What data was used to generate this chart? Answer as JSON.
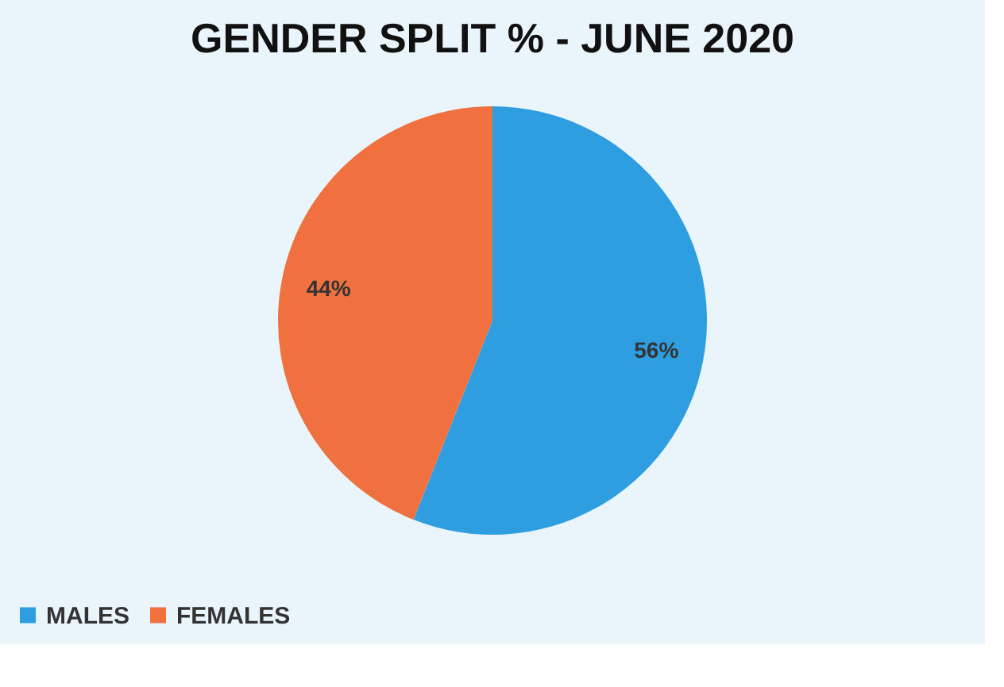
{
  "chart_data": {
    "type": "pie",
    "title": "GENDER SPLIT % - JUNE 2020",
    "categories": [
      "MALES",
      "FEMALES"
    ],
    "values": [
      56,
      44
    ],
    "colors": [
      "#2f9ee0",
      "#f0703f"
    ],
    "value_labels": [
      "56%",
      "44%"
    ],
    "legend": "bottom"
  }
}
